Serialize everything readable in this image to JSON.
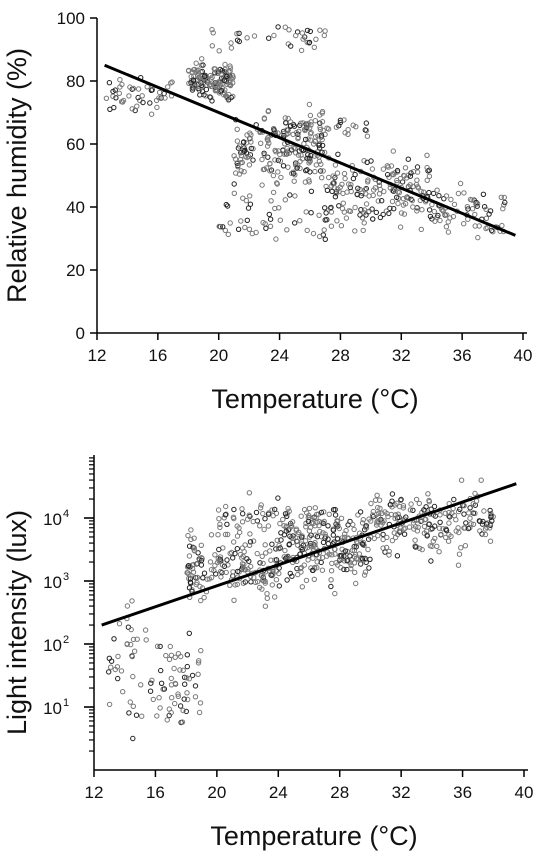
{
  "chart_data": [
    {
      "type": "scatter",
      "panel": "top",
      "xlabel": "Temperature (°C)",
      "ylabel": "Relative humidity (%)",
      "xlim": [
        12,
        40
      ],
      "ylim": [
        0,
        100
      ],
      "xticks": [
        "12",
        "16",
        "20",
        "24",
        "28",
        "32",
        "36",
        "40"
      ],
      "yticks": [
        "0",
        "20",
        "40",
        "60",
        "80",
        "100"
      ],
      "y_scale": "linear",
      "grid": false,
      "legend": "none",
      "marker": "open circle",
      "marker_color": "#555555",
      "regression_line": {
        "x": [
          12.5,
          39.5
        ],
        "y": [
          85,
          31
        ]
      },
      "point_clusters": [
        {
          "x": [
            18,
            21
          ],
          "y": [
            72,
            88
          ],
          "n": 140,
          "note": "dense upper cluster"
        },
        {
          "x": [
            21,
            27
          ],
          "y": [
            40,
            75
          ],
          "n": 190
        },
        {
          "x": [
            27,
            34
          ],
          "y": [
            30,
            60
          ],
          "n": 170
        },
        {
          "x": [
            34,
            39
          ],
          "y": [
            28,
            50
          ],
          "n": 70
        },
        {
          "x": [
            12.5,
            17
          ],
          "y": [
            68,
            82
          ],
          "n": 45
        },
        {
          "x": [
            20,
            30
          ],
          "y": [
            28,
            45
          ],
          "n": 60
        },
        {
          "x": [
            19.5,
            27
          ],
          "y": [
            88,
            100
          ],
          "n": 35
        },
        {
          "x": [
            23,
            30
          ],
          "y": [
            60,
            70
          ],
          "n": 55
        }
      ]
    },
    {
      "type": "scatter",
      "panel": "bottom",
      "xlabel": "Temperature (°C)",
      "ylabel": "Light intensity (lux)",
      "xlim": [
        12,
        40
      ],
      "ylim": [
        1,
        100000
      ],
      "xticks": [
        "12",
        "16",
        "20",
        "24",
        "28",
        "32",
        "36",
        "40"
      ],
      "yticks": [
        {
          "base": "10",
          "exp": "1",
          "value": 10
        },
        {
          "base": "10",
          "exp": "2",
          "value": 100
        },
        {
          "base": "10",
          "exp": "3",
          "value": 1000
        },
        {
          "base": "10",
          "exp": "4",
          "value": 10000
        }
      ],
      "y_scale": "log",
      "grid": false,
      "legend": "none",
      "marker": "open circle",
      "marker_color": "#555555",
      "regression_line": {
        "x": [
          12.5,
          39.5
        ],
        "y": [
          200,
          35000
        ]
      },
      "point_clusters": [
        {
          "x": [
            18,
            24
          ],
          "y_log10": [
            2.5,
            4.0
          ],
          "n": 170
        },
        {
          "x": [
            24,
            30
          ],
          "y_log10": [
            2.8,
            4.3
          ],
          "n": 230
        },
        {
          "x": [
            30,
            38
          ],
          "y_log10": [
            3.2,
            4.6
          ],
          "n": 210
        },
        {
          "x": [
            12.8,
            17
          ],
          "y_log10": [
            0.5,
            3.0
          ],
          "n": 55
        },
        {
          "x": [
            17,
            19
          ],
          "y_log10": [
            0.3,
            2.5
          ],
          "n": 40
        },
        {
          "x": [
            20,
            28
          ],
          "y_log10": [
            3.6,
            4.4
          ],
          "n": 80
        }
      ]
    }
  ]
}
